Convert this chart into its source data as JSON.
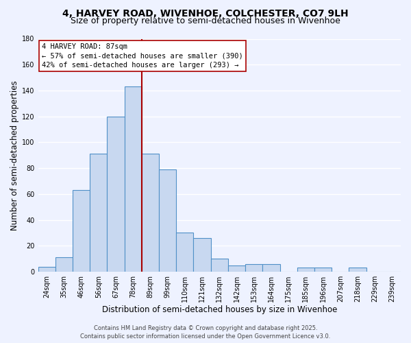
{
  "title1": "4, HARVEY ROAD, WIVENHOE, COLCHESTER, CO7 9LH",
  "title2": "Size of property relative to semi-detached houses in Wivenhoe",
  "xlabel": "Distribution of semi-detached houses by size in Wivenhoe",
  "ylabel": "Number of semi-detached properties",
  "bin_labels": [
    "24sqm",
    "35sqm",
    "46sqm",
    "56sqm",
    "67sqm",
    "78sqm",
    "89sqm",
    "99sqm",
    "110sqm",
    "121sqm",
    "132sqm",
    "142sqm",
    "153sqm",
    "164sqm",
    "175sqm",
    "185sqm",
    "196sqm",
    "207sqm",
    "218sqm",
    "229sqm",
    "239sqm"
  ],
  "bar_values": [
    4,
    11,
    63,
    91,
    120,
    143,
    91,
    79,
    30,
    26,
    10,
    5,
    6,
    6,
    0,
    3,
    3,
    0,
    3,
    0,
    0
  ],
  "bar_color": "#c8d8f0",
  "bar_edge_color": "#5090c8",
  "vline_x_bar_index": 6,
  "vline_color": "#aa0000",
  "annotation_title": "4 HARVEY ROAD: 87sqm",
  "annotation_line1": "← 57% of semi-detached houses are smaller (390)",
  "annotation_line2": "42% of semi-detached houses are larger (293) →",
  "box_facecolor": "white",
  "box_edgecolor": "#aa0000",
  "ylim": [
    0,
    180
  ],
  "yticks": [
    0,
    20,
    40,
    60,
    80,
    100,
    120,
    140,
    160,
    180
  ],
  "footer1": "Contains HM Land Registry data © Crown copyright and database right 2025.",
  "footer2": "Contains public sector information licensed under the Open Government Licence v3.0.",
  "bg_color": "#eef2ff",
  "grid_color": "white",
  "title_fontsize": 10,
  "subtitle_fontsize": 9,
  "axis_label_fontsize": 8.5,
  "tick_fontsize": 7,
  "annotation_fontsize": 7.5,
  "footer_fontsize": 6
}
